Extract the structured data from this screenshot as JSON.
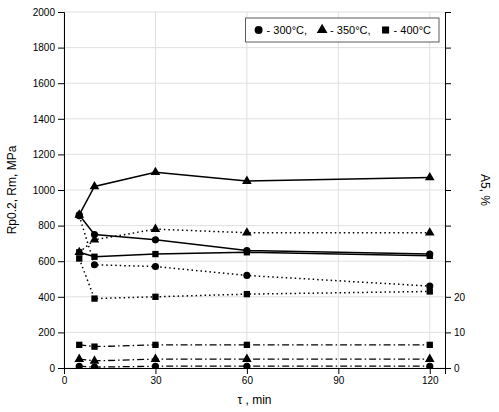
{
  "chart_data": {
    "type": "line",
    "x_label": "τ , min",
    "y_label": "Rp0.2, Rm, MPa",
    "y2_label": "A5, %",
    "x": [
      5,
      10,
      30,
      60,
      120
    ],
    "xlim": [
      0,
      125
    ],
    "xticks": [
      0,
      30,
      60,
      90,
      120
    ],
    "ylim": [
      0,
      2000
    ],
    "yticks": [
      0,
      200,
      400,
      600,
      800,
      1000,
      1200,
      1400,
      1600,
      1800,
      2000
    ],
    "y2lim": [
      0,
      100
    ],
    "y2ticks": [
      0,
      10,
      20,
      {
        "value": 30,
        "label": null
      },
      {
        "value": 40,
        "label": null
      },
      {
        "value": 50,
        "label": null
      },
      {
        "value": 60,
        "label": null
      },
      {
        "value": 70,
        "label": null
      },
      {
        "value": 80,
        "label": null
      },
      {
        "value": 90,
        "label": null
      },
      {
        "value": 100,
        "label": null
      }
    ],
    "grid": true,
    "legend": "upper right",
    "series": [
      {
        "name": "- 350°C,",
        "color": "#000000",
        "marker": "triangle",
        "line_style": "solid",
        "values": [
          860,
          1020,
          1100,
          1050,
          1070
        ]
      },
      {
        "name": "- 300°C,",
        "color": "#000000",
        "marker": "circle",
        "line_style": "solid",
        "values": [
          860,
          750,
          720,
          660,
          640
        ]
      },
      {
        "name": "- 400°C",
        "color": "#000000",
        "marker": "square",
        "line_style": "solid",
        "values": [
          650,
          625,
          640,
          650,
          630
        ]
      },
      {
        "name": "- 350°C,",
        "color": "#000000",
        "marker": "triangle",
        "line_style": "dotted",
        "values": [
          650,
          720,
          780,
          760,
          760
        ]
      },
      {
        "name": "- 300°C,",
        "color": "#000000",
        "marker": "circle",
        "line_style": "dotted",
        "values": [
          855,
          580,
          570,
          520,
          460
        ]
      },
      {
        "name": "- 400°C",
        "color": "#000000",
        "marker": "square",
        "line_style": "dotted",
        "values": [
          615,
          390,
          400,
          415,
          430
        ]
      },
      {
        "name": "- 400°C",
        "color": "#000000",
        "marker": "square",
        "line_style": "dashdot",
        "values": [
          130,
          120,
          130,
          130,
          130
        ]
      },
      {
        "name": "- 350°C,",
        "color": "#000000",
        "marker": "triangle",
        "line_style": "dashdot",
        "values": [
          50,
          40,
          50,
          50,
          50
        ]
      },
      {
        "name": "- 300°C,",
        "color": "#000000",
        "marker": "circle",
        "line_style": "dashdot",
        "values": [
          10,
          5,
          10,
          10,
          10
        ]
      }
    ]
  }
}
